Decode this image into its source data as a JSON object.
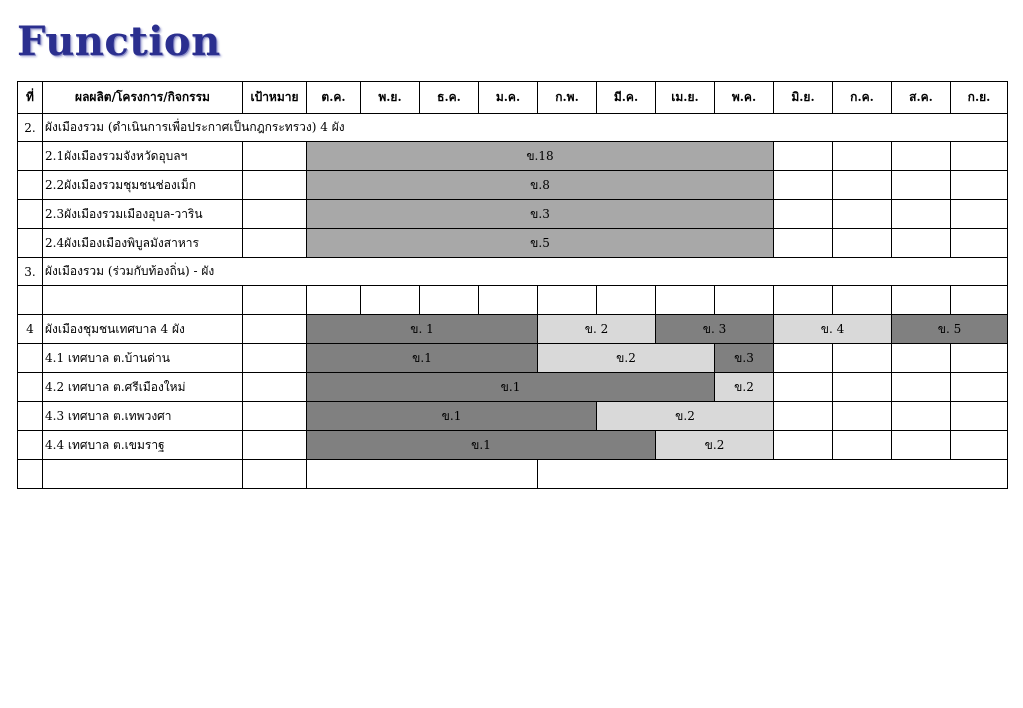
{
  "title": "Function",
  "table": {
    "headers": {
      "no": "ที่",
      "item": "ผลผลิต/โครงการ/กิจกรรม",
      "target": "เป้าหมาย",
      "months": [
        "ต.ค.",
        "พ.ย.",
        "ธ.ค.",
        "ม.ค.",
        "ก.พ.",
        "มี.ค.",
        "เม.ย.",
        "พ.ค.",
        "มิ.ย.",
        "ก.ค.",
        "ส.ค.",
        "ก.ย."
      ]
    },
    "sections": {
      "s2": {
        "no": "2.",
        "label": "ผังเมืองรวม (ดำเนินการเพื่อประกาศเป็นกฎกระทรวง)  4 ผัง"
      },
      "s3": {
        "no": "3.",
        "label": "ผังเมืองรวม (ร่วมกับท้องถิ่น)        -  ผัง"
      },
      "s4": {
        "no": "4",
        "label": "ผังเมืองชุมชนเทศบาล  4  ผัง"
      }
    },
    "rows": {
      "r21": {
        "label": "2.1ผังเมืองรวมจังหวัดอุบลฯ",
        "bar": "ข.18"
      },
      "r22": {
        "label": "2.2ผังเมืองรวมชุมชนช่องเม็ก",
        "bar": "ข.8"
      },
      "r23": {
        "label": "2.3ผังเมืองรวมเมืองอุบล-วาริน",
        "bar": "ข.3"
      },
      "r24": {
        "label": "2.4ผังเมืองเมืองพิบูลมังสาหาร",
        "bar": "ข.5"
      },
      "s4bars": [
        "ข. 1",
        "ข. 2",
        "ข. 3",
        "ข. 4",
        "ข. 5"
      ],
      "r41": {
        "label": "4.1 เทศบาล ต.บ้านด่าน",
        "bars": [
          "ข.1",
          "ข.2",
          "ข.3"
        ]
      },
      "r42": {
        "label": "4.2 เทศบาล ต.ศรีเมืองใหม่",
        "bars": [
          "ข.1",
          "ข.2"
        ]
      },
      "r43": {
        "label": "4.3 เทศบาล ต.เทพวงศา",
        "bars": [
          "ข.1",
          "ข.2"
        ]
      },
      "r44": {
        "label": "4.4 เทศบาล ต.เขมราฐ",
        "bars": [
          "ข.1",
          "ข.2"
        ]
      }
    }
  },
  "colors": {
    "title": "#2b2f8f",
    "bar_light": "#a8a8a8",
    "bar_dark": "#808080",
    "bar_pale": "#d9d9d9"
  }
}
